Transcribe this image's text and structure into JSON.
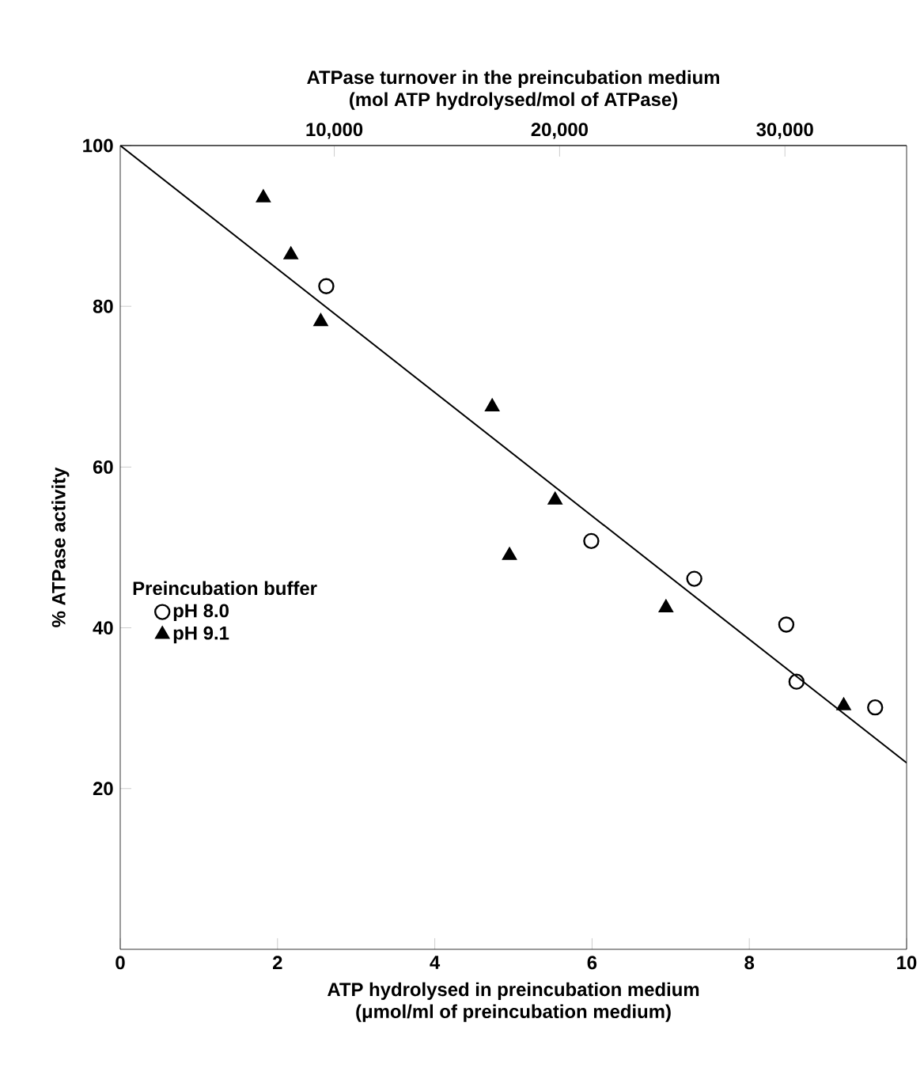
{
  "chart_data": {
    "type": "scatter",
    "xlabel": "ATP hydrolysed in preincubation medium\n(μmol/ml  of preincubation medium)",
    "ylabel": "% ATPase activity",
    "x2label": "ATPase turnover in the preincubation medium\n(mol ATP hydrolysed/mol of ATPase)",
    "legend_title": "Preincubation buffer",
    "xlim": [
      0,
      10
    ],
    "ylim": [
      0,
      100
    ],
    "xticks": [
      0,
      2,
      4,
      6,
      8,
      10
    ],
    "yticks": [
      20,
      40,
      60,
      80,
      100
    ],
    "x2lim": [
      500,
      35400
    ],
    "x2ticks": [
      {
        "value": 10000,
        "label": "10,000"
      },
      {
        "value": 20000,
        "label": "20,000"
      },
      {
        "value": 30000,
        "label": "30,000"
      }
    ],
    "legend": "left",
    "grid": false,
    "series": [
      {
        "name": "pH 8.0",
        "color": "#000000",
        "marker": "circle",
        "x": [
          2.62,
          5.99,
          7.3,
          8.47,
          8.6,
          9.6
        ],
        "values": [
          82.5,
          50.8,
          46.1,
          40.4,
          33.3,
          30.1
        ]
      },
      {
        "name": "pH 9.1",
        "color": "#000000",
        "marker": "triangle",
        "x": [
          1.82,
          2.17,
          2.55,
          4.73,
          5.53,
          4.95,
          6.94,
          9.2
        ],
        "values": [
          93.5,
          86.4,
          78.1,
          67.5,
          55.9,
          49.0,
          42.5,
          30.3
        ]
      },
      {
        "type": "line",
        "color": "#000000",
        "marker": "none",
        "line_style": "solid",
        "x": [
          0,
          10
        ],
        "values": [
          100,
          23.2
        ]
      }
    ]
  }
}
